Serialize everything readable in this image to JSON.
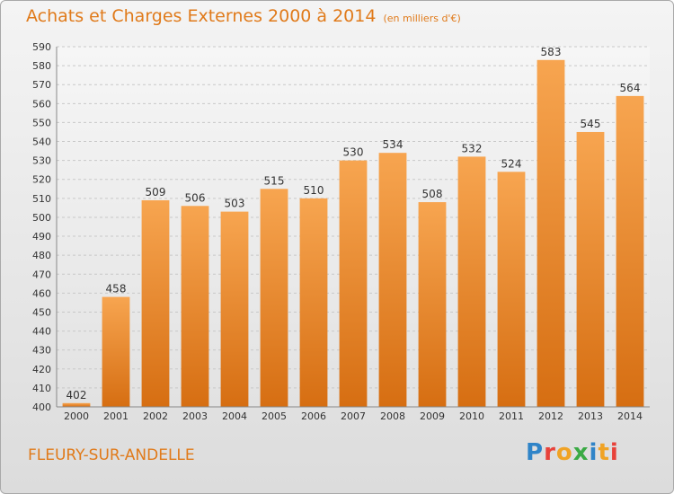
{
  "title": "Achats et Charges Externes 2000 à 2014",
  "unit_note": "(en milliers d'€)",
  "city": "FLEURY-SUR-ANDELLE",
  "logo": {
    "letters": [
      "P",
      "r",
      "o",
      "x",
      "i",
      "t",
      "i"
    ]
  },
  "colors": {
    "bar_top": "#f7a550",
    "bar_bottom": "#d66e12",
    "title": "#e07a1a"
  },
  "chart_data": {
    "type": "bar",
    "categories": [
      "2000",
      "2001",
      "2002",
      "2003",
      "2004",
      "2005",
      "2006",
      "2007",
      "2008",
      "2009",
      "2010",
      "2011",
      "2012",
      "2013",
      "2014"
    ],
    "values": [
      402,
      458,
      509,
      506,
      503,
      515,
      510,
      530,
      534,
      508,
      532,
      524,
      583,
      545,
      564
    ],
    "title": "Achats et Charges Externes 2000 à 2014",
    "xlabel": "",
    "ylabel": "",
    "ylim": [
      400,
      590
    ],
    "yticks": [
      400,
      410,
      420,
      430,
      440,
      450,
      460,
      470,
      480,
      490,
      500,
      510,
      520,
      530,
      540,
      550,
      560,
      570,
      580,
      590
    ],
    "grid": true,
    "legend": "none"
  }
}
